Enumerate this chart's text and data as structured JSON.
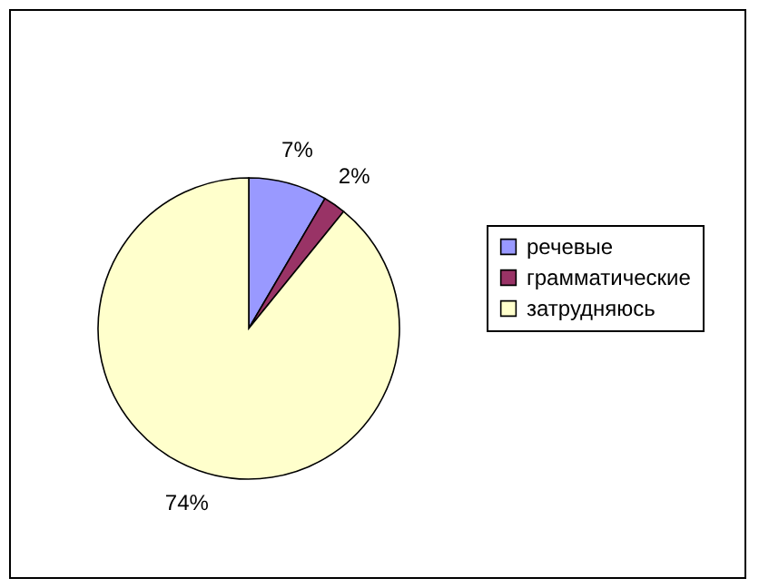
{
  "chart_data": {
    "type": "pie",
    "categories": [
      "речевые",
      "грамматические",
      "затрудняюсь"
    ],
    "values": [
      7,
      2,
      74
    ],
    "colors": [
      "#9999ff",
      "#993366",
      "#ffffcc"
    ],
    "value_labels": [
      "7%",
      "2%",
      "74%"
    ],
    "legend": "right"
  }
}
